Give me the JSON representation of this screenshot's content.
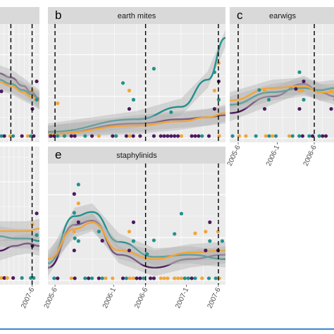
{
  "colors": {
    "panel_bg": "#ebebeb",
    "strip_bg": "#d9d9d9",
    "grid_major": "#ffffff",
    "purple": "#4b1a5e",
    "teal": "#21918c",
    "orange": "#f2a53a",
    "ribbon": "#b3b3b3",
    "bottom_rule": "#3a86d6"
  },
  "chart_data": [
    {
      "type": "scatter",
      "tag": "",
      "strip_title": "",
      "x_ticks": [],
      "vlines": [
        "2006-6",
        "2007-6"
      ],
      "series": [
        {
          "color_key": "purple",
          "smooth": [
            [
              0,
              1.55
            ],
            [
              0.3,
              1.45
            ],
            [
              0.6,
              1.25
            ],
            [
              0.8,
              1.1
            ],
            [
              1.0,
              0.95
            ]
          ]
        },
        {
          "color_key": "teal",
          "smooth": [
            [
              0,
              1.4
            ],
            [
              0.3,
              1.3
            ],
            [
              0.6,
              1.15
            ],
            [
              0.8,
              1.05
            ],
            [
              1.0,
              0.9
            ]
          ]
        },
        {
          "color_key": "orange",
          "smooth": [
            [
              0,
              1.35
            ],
            [
              0.3,
              1.25
            ],
            [
              0.6,
              1.1
            ],
            [
              0.8,
              1.0
            ],
            [
              1.0,
              0.88
            ]
          ]
        }
      ]
    },
    {
      "type": "scatter",
      "tag": "b",
      "strip_title": "earth mites",
      "x_ticks": [],
      "vlines": [
        "2005-6",
        "2006-6",
        "2007-6"
      ],
      "series": [
        {
          "color_key": "purple",
          "smooth": [
            [
              0,
              0.1
            ],
            [
              0.5,
              0.35
            ],
            [
              0.75,
              0.45
            ],
            [
              0.9,
              0.5
            ],
            [
              1.0,
              0.55
            ]
          ]
        },
        {
          "color_key": "teal",
          "smooth": [
            [
              0,
              0.15
            ],
            [
              0.5,
              0.45
            ],
            [
              0.75,
              0.75
            ],
            [
              0.9,
              1.4
            ],
            [
              1.0,
              2.4
            ]
          ]
        },
        {
          "color_key": "orange",
          "smooth": [
            [
              0,
              0.1
            ],
            [
              0.5,
              0.3
            ],
            [
              0.75,
              0.4
            ],
            [
              0.9,
              0.5
            ],
            [
              1.0,
              0.6
            ]
          ]
        }
      ]
    },
    {
      "type": "scatter",
      "tag": "c",
      "strip_title": "earwigs",
      "x_ticks": [
        "2005-6",
        "2006-1",
        "2006-6"
      ],
      "vlines": [
        "2005-6",
        "2006-6"
      ],
      "series": [
        {
          "color_key": "purple",
          "smooth": [
            [
              0,
              0.6
            ],
            [
              0.4,
              1.0
            ],
            [
              0.7,
              1.3
            ],
            [
              0.85,
              1.1
            ],
            [
              1.0,
              1.0
            ]
          ]
        },
        {
          "color_key": "teal",
          "smooth": [
            [
              0,
              0.8
            ],
            [
              0.4,
              1.1
            ],
            [
              0.7,
              1.2
            ],
            [
              0.85,
              1.15
            ],
            [
              1.0,
              1.2
            ]
          ]
        },
        {
          "color_key": "orange",
          "smooth": [
            [
              0,
              0.9
            ],
            [
              0.4,
              1.2
            ],
            [
              0.7,
              1.25
            ],
            [
              0.85,
              1.1
            ],
            [
              1.0,
              1.1
            ]
          ]
        }
      ]
    },
    {
      "type": "scatter",
      "tag": "",
      "strip_title": "",
      "x_ticks": [
        "2007-6"
      ],
      "vlines": [
        "2007-6"
      ],
      "series": [
        {
          "color_key": "purple",
          "smooth": [
            [
              0,
              0.6
            ],
            [
              0.4,
              0.7
            ],
            [
              0.7,
              0.75
            ],
            [
              1.0,
              0.7
            ]
          ]
        },
        {
          "color_key": "teal",
          "smooth": [
            [
              0,
              0.9
            ],
            [
              0.4,
              0.85
            ],
            [
              0.7,
              0.85
            ],
            [
              1.0,
              0.8
            ]
          ]
        },
        {
          "color_key": "orange",
          "smooth": [
            [
              0,
              1.0
            ],
            [
              0.4,
              1.0
            ],
            [
              0.7,
              1.0
            ],
            [
              1.0,
              1.05
            ]
          ]
        }
      ]
    },
    {
      "type": "scatter",
      "tag": "e",
      "strip_title": "staphylinids",
      "x_ticks": [
        "2005-6",
        "2006-1",
        "2006-6",
        "2007-1",
        "2007-6"
      ],
      "vlines": [
        "2006-6",
        "2007-6"
      ],
      "series": [
        {
          "color_key": "purple",
          "smooth": [
            [
              0,
              0.3
            ],
            [
              0.15,
              1.3
            ],
            [
              0.25,
              1.4
            ],
            [
              0.4,
              0.6
            ],
            [
              0.6,
              0.3
            ],
            [
              0.8,
              0.5
            ],
            [
              1.0,
              0.6
            ]
          ]
        },
        {
          "color_key": "teal",
          "smooth": [
            [
              0,
              0.4
            ],
            [
              0.15,
              1.5
            ],
            [
              0.25,
              1.6
            ],
            [
              0.4,
              0.9
            ],
            [
              0.6,
              0.55
            ],
            [
              0.8,
              0.6
            ],
            [
              1.0,
              0.5
            ]
          ]
        },
        {
          "color_key": "orange",
          "smooth": [
            [
              0,
              0.5
            ],
            [
              0.15,
              1.2
            ],
            [
              0.25,
              1.35
            ],
            [
              0.4,
              0.7
            ],
            [
              0.6,
              0.5
            ],
            [
              0.8,
              0.65
            ],
            [
              1.0,
              0.7
            ]
          ]
        }
      ]
    }
  ]
}
